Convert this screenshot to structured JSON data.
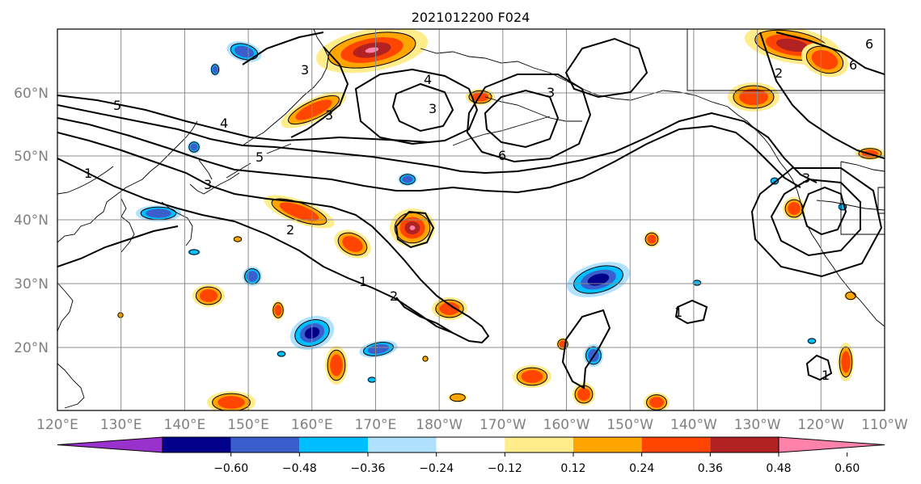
{
  "title": "2021012200 F024",
  "map": {
    "lat_ticks": [
      "60°N",
      "50°N",
      "40°N",
      "30°N",
      "20°N"
    ],
    "lon_ticks": [
      "120°E",
      "130°E",
      "140°E",
      "150°E",
      "160°E",
      "170°E",
      "180°W",
      "170°W",
      "160°W",
      "150°W",
      "140°W",
      "130°W",
      "120°W",
      "110°W"
    ],
    "contour_labels": [
      "5",
      "4",
      "3",
      "3",
      "5",
      "1",
      "3",
      "2",
      "1",
      "2",
      "4",
      "3",
      "6",
      "3",
      "2",
      "6",
      "3",
      "1",
      "1",
      "6"
    ]
  },
  "colorbar": {
    "tick_labels": [
      "−0.60",
      "−0.48",
      "−0.36",
      "−0.24",
      "−0.12",
      "0.12",
      "0.24",
      "0.36",
      "0.48",
      "0.60"
    ],
    "colors": [
      "#9932cc",
      "#00008b",
      "#3a5fcd",
      "#00bfff",
      "#b0e2ff",
      "#ffffff",
      "#ffec8b",
      "#ffa500",
      "#ff4500",
      "#b22222",
      "#ff82ab"
    ]
  },
  "colors": {
    "positive_weak": "#ffec8b",
    "positive_mid": "#ffa500",
    "positive_strong": "#ff4500",
    "positive_max": "#b22222",
    "positive_peak": "#ff82ab",
    "negative_weak": "#b0e2ff",
    "negative_mid": "#00bfff",
    "negative_strong": "#3a5fcd",
    "negative_max": "#00008b"
  }
}
